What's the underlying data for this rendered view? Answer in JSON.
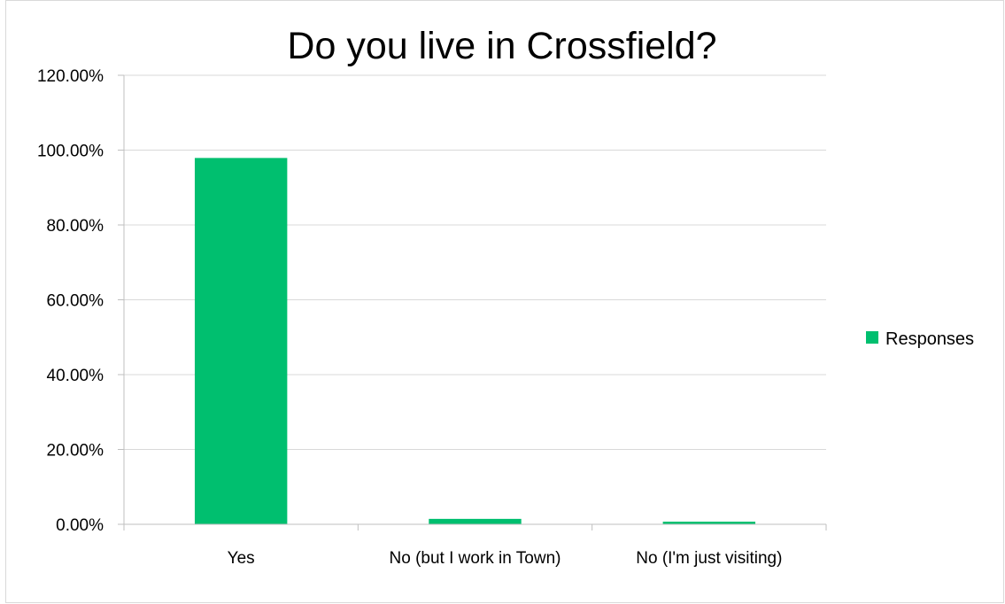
{
  "chart_data": {
    "type": "bar",
    "title": "Do you live in Crossfield?",
    "xlabel": "",
    "ylabel": "",
    "categories": [
      "Yes",
      "No (but I work in Town)",
      "No (I'm just visiting)"
    ],
    "series": [
      {
        "name": "Responses",
        "values": [
          97.9,
          1.45,
          0.7
        ],
        "color": "#00bf6f"
      }
    ],
    "ylim": [
      0,
      120
    ],
    "yticks": [
      0,
      20,
      40,
      60,
      80,
      100,
      120
    ],
    "ytick_labels": [
      "0.00%",
      "20.00%",
      "40.00%",
      "60.00%",
      "80.00%",
      "100.00%",
      "120.00%"
    ],
    "grid": true,
    "legend": "right",
    "grid_color": "#d9d9d9",
    "axis_color": "#bfbfbf"
  }
}
